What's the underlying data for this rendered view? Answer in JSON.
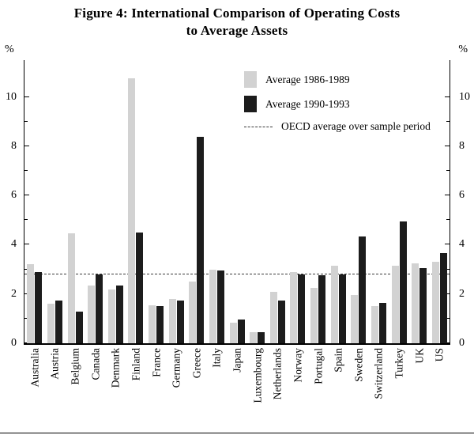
{
  "chart_data": {
    "type": "bar",
    "title": "Figure 4: International Comparison of Operating Costs",
    "title_line2": "to Average Assets",
    "y_unit": "%",
    "ylim": [
      0,
      11.5
    ],
    "yticks": [
      0,
      2,
      4,
      6,
      8,
      10
    ],
    "minor_yticks": [
      1,
      3,
      5,
      7,
      9
    ],
    "grid": false,
    "legend_position": "top-center-inside",
    "categories": [
      "Australia",
      "Austria",
      "Belgium",
      "Canada",
      "Denmark",
      "Finland",
      "France",
      "Germany",
      "Greece",
      "Italy",
      "Japan",
      "Luxembourg",
      "Netherlands",
      "Norway",
      "Portugal",
      "Spain",
      "Sweden",
      "Switzerland",
      "Turkey",
      "UK",
      "US"
    ],
    "series": [
      {
        "name": "Average 1986-1989",
        "color": "#d2d2d2",
        "values": [
          3.2,
          1.6,
          4.45,
          2.35,
          2.2,
          10.75,
          1.55,
          1.8,
          2.5,
          3.0,
          0.85,
          0.45,
          2.1,
          2.9,
          2.25,
          3.15,
          1.95,
          1.5,
          3.15,
          3.25,
          3.3
        ]
      },
      {
        "name": "Average 1990-1993",
        "color": "#1c1c1c",
        "values": [
          2.9,
          1.75,
          1.3,
          2.8,
          2.35,
          4.5,
          1.5,
          1.75,
          8.4,
          2.95,
          0.95,
          0.45,
          1.75,
          2.8,
          2.75,
          2.8,
          4.35,
          1.65,
          4.95,
          3.05,
          3.65
        ]
      }
    ],
    "oecd_line": {
      "label": "OECD average over sample period",
      "value": 2.8
    }
  }
}
